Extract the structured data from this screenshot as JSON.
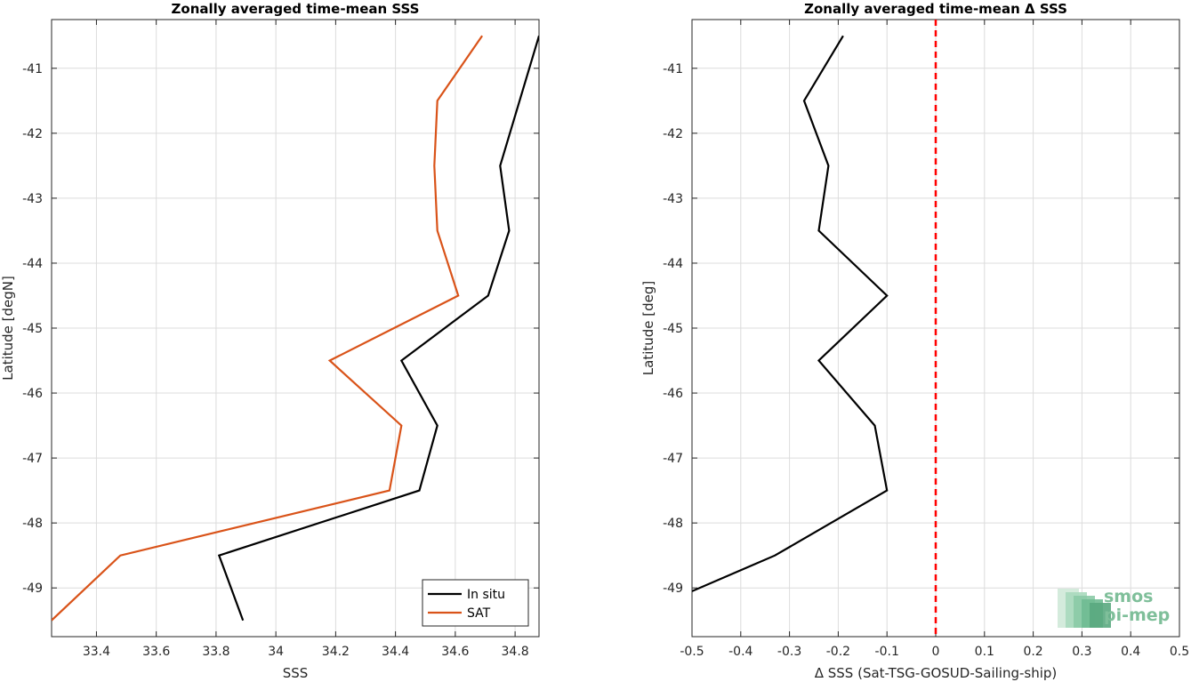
{
  "chart_data": [
    {
      "type": "line",
      "title": "Zonally averaged time-mean SSS",
      "xlabel": "SSS",
      "ylabel": "Latitude [degN]",
      "xlim": [
        33.25,
        34.88
      ],
      "ylim": [
        -49.75,
        -40.25
      ],
      "xticks": [
        33.4,
        33.6,
        33.8,
        34,
        34.2,
        34.4,
        34.6,
        34.8
      ],
      "xtick_labels": [
        "33.4",
        "33.6",
        "33.8",
        "34",
        "34.2",
        "34.4",
        "34.6",
        "34.8"
      ],
      "yticks": [
        -41,
        -42,
        -43,
        -44,
        -45,
        -46,
        -47,
        -48,
        -49
      ],
      "ytick_labels": [
        "-41",
        "-42",
        "-43",
        "-44",
        "-45",
        "-46",
        "-47",
        "-48",
        "-49"
      ],
      "grid": true,
      "legend": "bottom-right",
      "series": [
        {
          "name": "In situ",
          "color": "#000000",
          "points": [
            [
              34.88,
              -40.5
            ],
            [
              34.75,
              -42.5
            ],
            [
              34.78,
              -43.5
            ],
            [
              34.71,
              -44.5
            ],
            [
              34.42,
              -45.5
            ],
            [
              34.54,
              -46.5
            ],
            [
              34.48,
              -47.5
            ],
            [
              33.81,
              -48.5
            ],
            [
              33.89,
              -49.5
            ]
          ]
        },
        {
          "name": "SAT",
          "color": "#d95319",
          "points": [
            [
              34.69,
              -40.5
            ],
            [
              34.54,
              -41.5
            ],
            [
              34.53,
              -42.5
            ],
            [
              34.54,
              -43.5
            ],
            [
              34.61,
              -44.5
            ],
            [
              34.18,
              -45.5
            ],
            [
              34.42,
              -46.5
            ],
            [
              34.38,
              -47.5
            ],
            [
              33.48,
              -48.5
            ],
            [
              33.25,
              -49.5
            ]
          ]
        }
      ]
    },
    {
      "type": "line",
      "title": "Zonally averaged time-mean Δ SSS",
      "xlabel": "Δ SSS (Sat-TSG-GOSUD-Sailing-ship)",
      "ylabel": "Latitude [deg]",
      "xlim": [
        -0.5,
        0.5
      ],
      "ylim": [
        -49.75,
        -40.25
      ],
      "xticks": [
        -0.5,
        -0.4,
        -0.3,
        -0.2,
        -0.1,
        0,
        0.1,
        0.2,
        0.3,
        0.4,
        0.5
      ],
      "xtick_labels": [
        "-0.5",
        "-0.4",
        "-0.3",
        "-0.2",
        "-0.1",
        "0",
        "0.1",
        "0.2",
        "0.3",
        "0.4",
        "0.5"
      ],
      "yticks": [
        -41,
        -42,
        -43,
        -44,
        -45,
        -46,
        -47,
        -48,
        -49
      ],
      "ytick_labels": [
        "-41",
        "-42",
        "-43",
        "-44",
        "-45",
        "-46",
        "-47",
        "-48",
        "-49"
      ],
      "grid": true,
      "reference_line": {
        "x": 0,
        "color": "#ff0000",
        "style": "dashed"
      },
      "series": [
        {
          "color": "#000000",
          "points": [
            [
              -0.19,
              -40.5
            ],
            [
              -0.27,
              -41.5
            ],
            [
              -0.22,
              -42.5
            ],
            [
              -0.24,
              -43.5
            ],
            [
              -0.1,
              -44.5
            ],
            [
              -0.24,
              -45.5
            ],
            [
              -0.125,
              -46.5
            ],
            [
              -0.1,
              -47.5
            ],
            [
              -0.33,
              -48.5
            ],
            [
              -0.5,
              -49.05
            ]
          ]
        }
      ]
    }
  ],
  "logo": {
    "line1": "smos",
    "line2": "pi-mep"
  }
}
